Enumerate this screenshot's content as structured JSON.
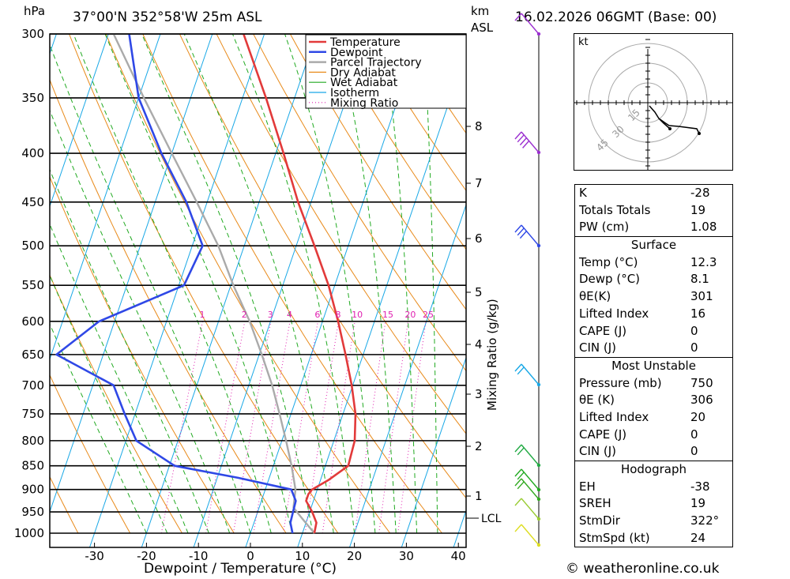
{
  "header": {
    "hpa": "hPa",
    "location": "37°00'N  352°58'W  25m  ASL",
    "km": "km",
    "asl": "ASL",
    "datetime": "16.02.2026  06GMT  (Base: 00)"
  },
  "chart_data": {
    "type": "line",
    "title": "",
    "xlabel": "Dewpoint / Temperature (°C)",
    "ylabel": "hPa",
    "secondary_ylabel": "Mixing Ratio (g/kg)",
    "x_ticks": [
      -30,
      -20,
      -10,
      0,
      10,
      20,
      30,
      40
    ],
    "pressure_levels": [
      300,
      350,
      400,
      450,
      500,
      550,
      600,
      650,
      700,
      750,
      800,
      850,
      900,
      950,
      1000
    ],
    "height_km_ticks": [
      1,
      2,
      3,
      4,
      5,
      6,
      7,
      8
    ],
    "lcl_label": "LCL",
    "mixing_ratio_labels": [
      "1",
      "2",
      "3",
      "4",
      "6",
      "8",
      "10",
      "15",
      "20",
      "25"
    ],
    "legend": [
      "Temperature",
      "Dewpoint",
      "Parcel Trajectory",
      "Dry Adiabat",
      "Wet Adiabat",
      "Isotherm",
      "Mixing Ratio"
    ],
    "legend_placement": "top-right",
    "colors": {
      "temperature": "#e23a3a",
      "dewpoint": "#2f48e6",
      "parcel": "#aaaaaa",
      "dry_adiabat": "#e88a1a",
      "wet_adiabat": "#22aa22",
      "isotherm": "#19a8e6",
      "mixing_ratio": "#e020b0"
    },
    "series": [
      {
        "name": "Temperature",
        "points": [
          [
            1000,
            12.3
          ],
          [
            975,
            12.0
          ],
          [
            950,
            10.5
          ],
          [
            925,
            8.6
          ],
          [
            910,
            8.6
          ],
          [
            900,
            9.0
          ],
          [
            880,
            11.5
          ],
          [
            850,
            14.4
          ],
          [
            800,
            14.0
          ],
          [
            750,
            12.4
          ],
          [
            700,
            9.8
          ],
          [
            650,
            6.6
          ],
          [
            600,
            3.0
          ],
          [
            550,
            -1.2
          ],
          [
            500,
            -6.5
          ],
          [
            450,
            -12.5
          ],
          [
            400,
            -18.5
          ],
          [
            350,
            -25.5
          ],
          [
            300,
            -34.0
          ]
        ]
      },
      {
        "name": "Dewpoint",
        "points": [
          [
            1000,
            8.1
          ],
          [
            975,
            7.0
          ],
          [
            950,
            6.8
          ],
          [
            925,
            6.6
          ],
          [
            900,
            5.0
          ],
          [
            875,
            -6.0
          ],
          [
            850,
            -19.0
          ],
          [
            800,
            -28.0
          ],
          [
            750,
            -32.0
          ],
          [
            700,
            -36.0
          ],
          [
            650,
            -49.0
          ],
          [
            600,
            -43.0
          ],
          [
            550,
            -29.0
          ],
          [
            500,
            -28.0
          ],
          [
            450,
            -34.0
          ],
          [
            400,
            -42.0
          ],
          [
            350,
            -50.0
          ],
          [
            300,
            -56.0
          ]
        ]
      },
      {
        "name": "Parcel Trajectory",
        "points": [
          [
            1000,
            12.3
          ],
          [
            960,
            8.5
          ],
          [
            940,
            6.6
          ],
          [
            900,
            5.8
          ],
          [
            850,
            3.5
          ],
          [
            800,
            0.8
          ],
          [
            750,
            -2.2
          ],
          [
            700,
            -5.5
          ],
          [
            650,
            -9.5
          ],
          [
            600,
            -14.0
          ],
          [
            550,
            -19.5
          ],
          [
            500,
            -25.0
          ],
          [
            450,
            -32.0
          ],
          [
            400,
            -40.0
          ],
          [
            350,
            -49.0
          ],
          [
            300,
            -59.0
          ]
        ]
      }
    ]
  },
  "hodograph": {
    "unit": "kt",
    "ring_labels": [
      "15",
      "30",
      "45"
    ]
  },
  "indices": {
    "top": [
      {
        "k": "K",
        "v": "-28"
      },
      {
        "k": "Totals Totals",
        "v": "19"
      },
      {
        "k": "PW (cm)",
        "v": "1.08"
      }
    ],
    "surface": {
      "title": "Surface",
      "rows": [
        {
          "k": "Temp (°C)",
          "v": "12.3"
        },
        {
          "k": "Dewp (°C)",
          "v": "8.1"
        },
        {
          "k": "θE(K)",
          "v": "301"
        },
        {
          "k": "Lifted Index",
          "v": "16"
        },
        {
          "k": "CAPE (J)",
          "v": "0"
        },
        {
          "k": "CIN (J)",
          "v": "0"
        }
      ]
    },
    "unstable": {
      "title": "Most Unstable",
      "rows": [
        {
          "k": "Pressure (mb)",
          "v": "750"
        },
        {
          "k": "θE (K)",
          "v": "306"
        },
        {
          "k": "Lifted Index",
          "v": "20"
        },
        {
          "k": "CAPE (J)",
          "v": "0"
        },
        {
          "k": "CIN (J)",
          "v": "0"
        }
      ]
    },
    "hodo": {
      "title": "Hodograph",
      "rows": [
        {
          "k": "EH",
          "v": "-38"
        },
        {
          "k": "SREH",
          "v": "19"
        },
        {
          "k": "StmDir",
          "v": "322°"
        },
        {
          "k": "StmSpd (kt)",
          "v": "24"
        }
      ]
    }
  },
  "footer": {
    "credit": "© weatheronline.co.uk"
  }
}
